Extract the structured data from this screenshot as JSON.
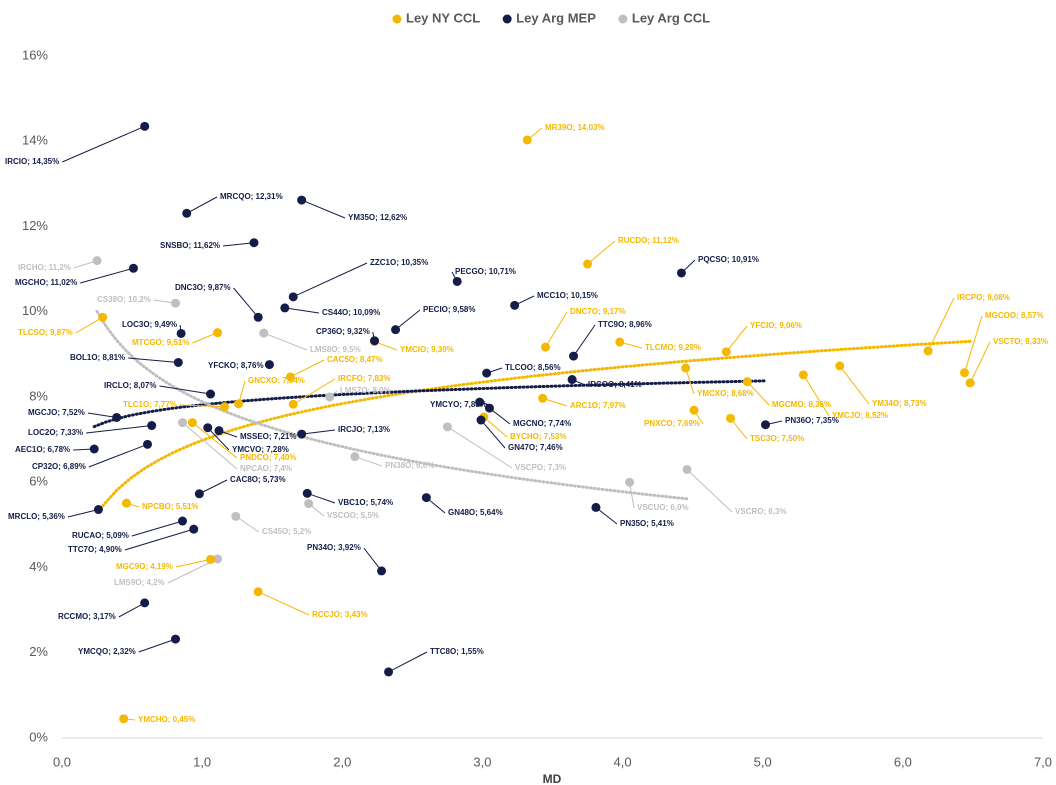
{
  "chart_data": {
    "type": "scatter",
    "x_label": "MD",
    "xlim": [
      0,
      7
    ],
    "xticks": [
      {
        "value": 0,
        "label": "0,0"
      },
      {
        "value": 1,
        "label": "1,0"
      },
      {
        "value": 2,
        "label": "2,0"
      },
      {
        "value": 3,
        "label": "3,0"
      },
      {
        "value": 4,
        "label": "4,0"
      },
      {
        "value": 5,
        "label": "5,0"
      },
      {
        "value": 6,
        "label": "6,0"
      },
      {
        "value": 7,
        "label": "7,0"
      }
    ],
    "ylim": [
      0,
      16
    ],
    "yticks": [
      {
        "value": 0,
        "label": "0%"
      },
      {
        "value": 2,
        "label": "2%"
      },
      {
        "value": 4,
        "label": "4%"
      },
      {
        "value": 6,
        "label": "6%"
      },
      {
        "value": 8,
        "label": "8%"
      },
      {
        "value": 10,
        "label": "10%"
      },
      {
        "value": 12,
        "label": "12%"
      },
      {
        "value": 14,
        "label": "14%"
      },
      {
        "value": 16,
        "label": "16%"
      }
    ],
    "legend": "top",
    "trendline": "log",
    "series": [
      {
        "name": "Ley NY CCL",
        "color": "#f5b800",
        "x": [
          3.32,
          3.75,
          6.18,
          6.44,
          6.48,
          0.29,
          1.11,
          2.23,
          3.45,
          3.98,
          4.74,
          1.63,
          1.26,
          4.45,
          5.55,
          5.29,
          4.89,
          1.65,
          1.16,
          3.43,
          3.01,
          4.51,
          4.77,
          0.93,
          0.46,
          1.06,
          1.4,
          0.44
        ],
        "values": [
          14.03,
          11.12,
          9.08,
          8.57,
          8.33,
          9.87,
          9.51,
          9.3,
          9.17,
          9.29,
          9.06,
          8.47,
          7.84,
          8.68,
          8.73,
          8.52,
          8.36,
          7.83,
          7.77,
          7.97,
          7.53,
          7.69,
          7.5,
          7.4,
          5.51,
          4.19,
          3.43,
          0.45
        ],
        "value_labels": [
          "MR39O; 14,03%",
          "RUCDO; 11,12%",
          "IRCPO; 9,08%",
          "MGCOO; 8,57%",
          "VSCTO; 8,33%",
          "TLCSO; 9,87%",
          "MTCGO; 9,51%",
          "YMCIO; 9,30%",
          "DNC7O; 9,17%",
          "TLCMO; 9,29%",
          "YFCIO; 9,06%",
          "CAC5O; 8,47%",
          "GNCXO; 7,84%",
          "YMCXO; 8,68%",
          "YM34O; 8,73%",
          "YMCJO; 8,52%",
          "MGCMO; 8,36%",
          "IRCFO; 7,83%",
          "TLC1O; 7,77%",
          "ARC1O; 7,97%",
          "BYCHO; 7,53%",
          "PNXCO; 7,69%",
          "TSC3O; 7,50%",
          "PNDCO; 7,40%",
          "NPCBO; 5,51%",
          "MGC9O; 4,19%",
          "RCCJO; 3,43%",
          "YMCHO; 0,45%"
        ]
      },
      {
        "name": "Ley Arg MEP",
        "color": "#141d47",
        "x": [
          0.59,
          0.89,
          1.71,
          1.37,
          0.51,
          1.65,
          2.82,
          4.42,
          1.4,
          1.59,
          3.23,
          2.38,
          0.85,
          2.23,
          3.65,
          0.83,
          1.48,
          3.03,
          3.64,
          1.06,
          0.39,
          2.98,
          3.05,
          2.99,
          0.64,
          1.12,
          1.04,
          1.71,
          5.02,
          0.23,
          0.61,
          0.98,
          1.75,
          2.6,
          3.81,
          0.26,
          0.86,
          0.94,
          2.28,
          0.59,
          0.81,
          2.33
        ],
        "values": [
          14.35,
          12.31,
          12.62,
          11.62,
          11.02,
          10.35,
          10.71,
          10.91,
          9.87,
          10.09,
          10.15,
          9.58,
          9.49,
          9.32,
          8.96,
          8.81,
          8.76,
          8.56,
          8.41,
          8.07,
          7.52,
          7.88,
          7.74,
          7.46,
          7.33,
          7.21,
          7.28,
          7.13,
          7.35,
          6.78,
          6.89,
          5.73,
          5.74,
          5.64,
          5.41,
          5.36,
          5.09,
          4.9,
          3.92,
          3.17,
          2.32,
          1.55
        ],
        "value_labels": [
          "IRCIO; 14,35%",
          "MRCQO; 12,31%",
          "YM35O; 12,62%",
          "SNSBO; 11,62%",
          "MGCHO; 11,02%",
          "ZZC1O; 10,35%",
          "PECGO; 10,71%",
          "PQCSO; 10,91%",
          "DNC3O; 9,87%",
          "CS44O; 10,09%",
          "MCC1O; 10,15%",
          "PECIO; 9,58%",
          "LOC3O; 9,49%",
          "CP36O; 9,32%",
          "TTC9O; 8,96%",
          "BOL1O; 8,81%",
          "YFCKO; 8,76%",
          "TLCOO; 8,56%",
          "IRCOO; 8,41%",
          "IRCLO; 8,07%",
          "MGCJO; 7,52%",
          "YMCYO; 7,88%",
          "MGCNO; 7,74%",
          "GN47O; 7,46%",
          "LOC2O; 7,33%",
          "MSSEO; 7,21%",
          "YMCVO; 7,28%",
          "IRCJO; 7,13%",
          "PN36O; 7,35%",
          "AEC1O; 6,78%",
          "CP32O; 6,89%",
          "CAC8O; 5,73%",
          "VBC1O; 5,74%",
          "GN48O; 5,64%",
          "PN35O; 5,41%",
          "MRCLO; 5,36%",
          "RUCAO; 5,09%",
          "TTC7O; 4,90%",
          "PN34O; 3,92%",
          "RCCMO; 3,17%",
          "YMCQO; 2,32%",
          "TTC8O; 1,55%"
        ]
      },
      {
        "name": "Ley Arg CCL",
        "color": "#bfbfbf",
        "x": [
          0.25,
          0.81,
          1.44,
          1.91,
          0.86,
          2.75,
          2.09,
          4.05,
          4.46,
          1.76,
          1.24,
          1.11
        ],
        "values": [
          11.2,
          10.2,
          9.5,
          8.0,
          7.4,
          7.3,
          6.6,
          6.0,
          6.3,
          5.5,
          5.2,
          4.2
        ],
        "value_labels": [
          "IRCHO; 11,2%",
          "CS38O; 10,2%",
          "LMS8O; 9,5%",
          "LMS7O; 8,0%",
          "NPCAO; 7,4%",
          "VSCPO; 7,3%",
          "PN38O; 6,6%",
          "VSCUO; 6,0%",
          "VSCRO; 6,3%",
          "VSCOO; 5,5%",
          "CS45O; 5,2%",
          "LMS9O; 4,2%"
        ]
      }
    ]
  }
}
